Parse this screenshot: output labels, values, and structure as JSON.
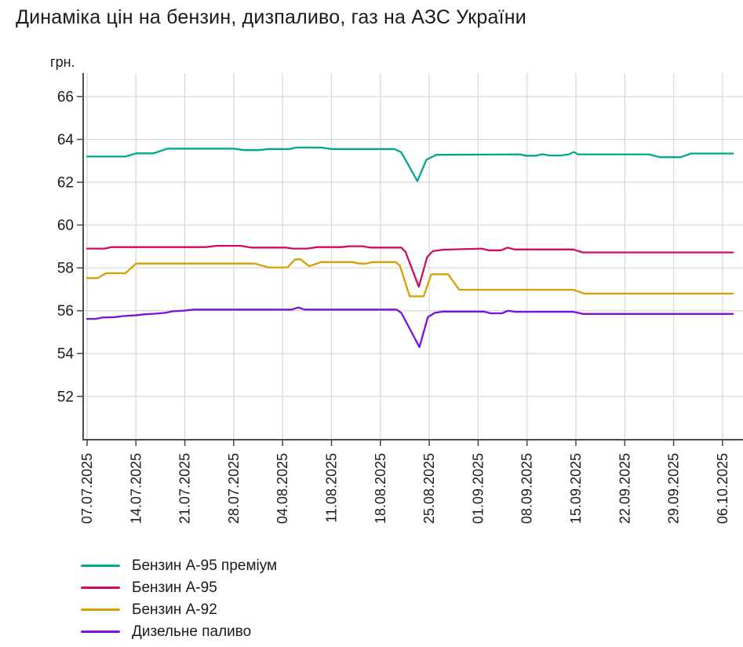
{
  "title": "Динаміка цін на бензин, дизпаливо, газ на АЗС України",
  "chart_data": {
    "type": "line",
    "title": "Динаміка цін на бензин, дизпаливо, газ на АЗС України",
    "ylabel": "грн.",
    "xlabel": "",
    "ylim": [
      50,
      67.1
    ],
    "grid": true,
    "legend_position": "bottom-left",
    "grid_color": "#d9d9d9",
    "axis_color": "#4d4d4d",
    "text_color": "#1a1a1a",
    "yticks": [
      66,
      64,
      62,
      60,
      58,
      56,
      54,
      52
    ],
    "xticks": [
      {
        "day": 0,
        "label": "07.07.2025"
      },
      {
        "day": 7,
        "label": "14.07.2025"
      },
      {
        "day": 14,
        "label": "21.07.2025"
      },
      {
        "day": 21,
        "label": "28.07.2025"
      },
      {
        "day": 28,
        "label": "04.08.2025"
      },
      {
        "day": 35,
        "label": "11.08.2025"
      },
      {
        "day": 42,
        "label": "18.08.2025"
      },
      {
        "day": 49,
        "label": "25.08.2025"
      },
      {
        "day": 56,
        "label": "01.09.2025"
      },
      {
        "day": 63,
        "label": "08.09.2025"
      },
      {
        "day": 70,
        "label": "15.09.2025"
      },
      {
        "day": 77,
        "label": "22.09.2025"
      },
      {
        "day": 84,
        "label": "29.09.2025"
      },
      {
        "day": 91,
        "label": "06.10.2025"
      }
    ],
    "series": [
      {
        "name": "Бензин А-95 преміум",
        "color": "#00a78e",
        "points": [
          [
            0,
            63.2
          ],
          [
            5.5,
            63.2
          ],
          [
            7,
            63.35
          ],
          [
            9.5,
            63.35
          ],
          [
            11.5,
            63.57
          ],
          [
            21,
            63.57
          ],
          [
            22.5,
            63.5
          ],
          [
            24.5,
            63.5
          ],
          [
            26,
            63.55
          ],
          [
            29,
            63.55
          ],
          [
            30,
            63.62
          ],
          [
            33.5,
            63.62
          ],
          [
            35,
            63.55
          ],
          [
            44,
            63.55
          ],
          [
            45,
            63.4
          ],
          [
            47.3,
            62.05
          ],
          [
            48.6,
            63.05
          ],
          [
            50,
            63.28
          ],
          [
            62,
            63.3
          ],
          [
            62.8,
            63.24
          ],
          [
            64.3,
            63.24
          ],
          [
            65.2,
            63.31
          ],
          [
            66.2,
            63.25
          ],
          [
            67.8,
            63.25
          ],
          [
            69,
            63.3
          ],
          [
            69.7,
            63.41
          ],
          [
            70.3,
            63.3
          ],
          [
            80.5,
            63.3
          ],
          [
            82,
            63.17
          ],
          [
            85,
            63.17
          ],
          [
            86.5,
            63.34
          ],
          [
            92.5,
            63.34
          ]
        ]
      },
      {
        "name": "Бензин А-95",
        "color": "#ce0c63",
        "points": [
          [
            0,
            58.9
          ],
          [
            2.5,
            58.9
          ],
          [
            3.5,
            58.97
          ],
          [
            17,
            58.97
          ],
          [
            18.5,
            59.03
          ],
          [
            22,
            59.03
          ],
          [
            23.5,
            58.95
          ],
          [
            28.5,
            58.95
          ],
          [
            29.5,
            58.9
          ],
          [
            31.5,
            58.9
          ],
          [
            33,
            58.97
          ],
          [
            36.5,
            58.97
          ],
          [
            37.5,
            59.01
          ],
          [
            39.5,
            59.01
          ],
          [
            40.5,
            58.95
          ],
          [
            45,
            58.95
          ],
          [
            45.6,
            58.75
          ],
          [
            47.5,
            57.12
          ],
          [
            48.7,
            58.5
          ],
          [
            49.5,
            58.78
          ],
          [
            51,
            58.85
          ],
          [
            56.5,
            58.9
          ],
          [
            57.5,
            58.82
          ],
          [
            59.3,
            58.82
          ],
          [
            60.2,
            58.95
          ],
          [
            61.2,
            58.86
          ],
          [
            69.6,
            58.86
          ],
          [
            71,
            58.72
          ],
          [
            92.5,
            58.72
          ]
        ]
      },
      {
        "name": "Бензин А-92",
        "color": "#d7a000",
        "points": [
          [
            0,
            57.52
          ],
          [
            1.5,
            57.52
          ],
          [
            2.7,
            57.75
          ],
          [
            5.5,
            57.75
          ],
          [
            7,
            58.2
          ],
          [
            24,
            58.2
          ],
          [
            26,
            58.02
          ],
          [
            28.7,
            58.02
          ],
          [
            29.8,
            58.4
          ],
          [
            30.6,
            58.4
          ],
          [
            31.8,
            58.08
          ],
          [
            33.5,
            58.27
          ],
          [
            38,
            58.27
          ],
          [
            39,
            58.2
          ],
          [
            40,
            58.2
          ],
          [
            40.8,
            58.27
          ],
          [
            44.2,
            58.27
          ],
          [
            44.8,
            58.1
          ],
          [
            46.2,
            56.67
          ],
          [
            48.2,
            56.67
          ],
          [
            49.3,
            57.7
          ],
          [
            51.7,
            57.7
          ],
          [
            53.3,
            56.98
          ],
          [
            69.6,
            56.98
          ],
          [
            71.2,
            56.8
          ],
          [
            92.5,
            56.8
          ]
        ]
      },
      {
        "name": "Дизельне паливо",
        "color": "#7c0ee0",
        "points": [
          [
            0,
            55.62
          ],
          [
            1.2,
            55.62
          ],
          [
            2.2,
            55.68
          ],
          [
            4,
            55.7
          ],
          [
            5.2,
            55.75
          ],
          [
            6.8,
            55.78
          ],
          [
            8.2,
            55.83
          ],
          [
            9.8,
            55.86
          ],
          [
            11.2,
            55.9
          ],
          [
            12.2,
            55.97
          ],
          [
            13.8,
            56.0
          ],
          [
            15.3,
            56.05
          ],
          [
            29.3,
            56.05
          ],
          [
            30.2,
            56.15
          ],
          [
            31.2,
            56.05
          ],
          [
            44.3,
            56.05
          ],
          [
            45,
            55.9
          ],
          [
            47.6,
            54.3
          ],
          [
            48.8,
            55.7
          ],
          [
            49.8,
            55.9
          ],
          [
            51,
            55.96
          ],
          [
            56.8,
            55.96
          ],
          [
            57.8,
            55.88
          ],
          [
            59.4,
            55.88
          ],
          [
            60.3,
            56.0
          ],
          [
            61.3,
            55.95
          ],
          [
            69.6,
            55.95
          ],
          [
            71,
            55.85
          ],
          [
            92.5,
            55.85
          ]
        ]
      }
    ]
  }
}
